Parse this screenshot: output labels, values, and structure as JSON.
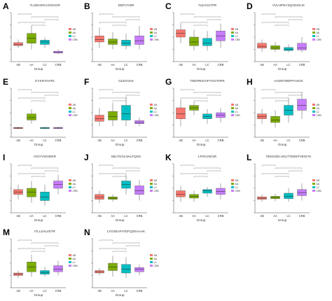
{
  "figure": {
    "group_colors": {
      "AB": "#f8766d",
      "AA": "#7cae00",
      "LC": "#00bfc4",
      "CRB": "#c77cff"
    }
  },
  "chart_data": [
    {
      "type": "box",
      "panel": "A",
      "title": "YLSDHSFLVSGGGR",
      "xlabel": "Group",
      "categories": [
        "AB",
        "AA",
        "LC",
        "CRB"
      ],
      "legend": [
        "AB",
        "AA",
        "LC",
        "CRB"
      ],
      "legend_position": "right",
      "series": [
        {
          "group": "AB",
          "q1": 0.26,
          "median": 0.28,
          "q3": 0.31,
          "min": 0.22,
          "max": 0.36
        },
        {
          "group": "AA",
          "q1": 0.3,
          "median": 0.38,
          "q3": 0.46,
          "min": 0.2,
          "max": 0.58
        },
        {
          "group": "LC",
          "q1": 0.28,
          "median": 0.32,
          "q3": 0.35,
          "min": 0.22,
          "max": 0.4
        },
        {
          "group": "CRB",
          "q1": 0.14,
          "median": 0.15,
          "q3": 0.17,
          "min": 0.12,
          "max": 0.2
        }
      ]
    },
    {
      "type": "box",
      "panel": "B",
      "title": "DDFIJYDR",
      "xlabel": "Group",
      "categories": [
        "AB",
        "AA",
        "LC",
        "CRB"
      ],
      "legend": [
        "AB",
        "AA",
        "LC",
        "CRB"
      ],
      "legend_position": "right",
      "series": [
        {
          "group": "AB",
          "q1": 0.32,
          "median": 0.36,
          "q3": 0.42,
          "min": 0.22,
          "max": 0.56
        },
        {
          "group": "AA",
          "q1": 0.28,
          "median": 0.32,
          "q3": 0.37,
          "min": 0.2,
          "max": 0.48
        },
        {
          "group": "LC",
          "q1": 0.26,
          "median": 0.3,
          "q3": 0.35,
          "min": 0.2,
          "max": 0.46
        },
        {
          "group": "CRB",
          "q1": 0.28,
          "median": 0.34,
          "q3": 0.42,
          "min": 0.2,
          "max": 0.58
        }
      ]
    },
    {
      "type": "box",
      "panel": "C",
      "title": "TLEAGLTPR",
      "xlabel": "Group",
      "categories": [
        "AB",
        "AA",
        "LC",
        "CRB"
      ],
      "legend": [
        "AB",
        "AA",
        "LC",
        "CRB"
      ],
      "legend_position": "right",
      "series": [
        {
          "group": "AB",
          "q1": 0.4,
          "median": 0.46,
          "q3": 0.52,
          "min": 0.3,
          "max": 0.62
        },
        {
          "group": "AA",
          "q1": 0.26,
          "median": 0.32,
          "q3": 0.4,
          "min": 0.18,
          "max": 0.52
        },
        {
          "group": "LC",
          "q1": 0.26,
          "median": 0.3,
          "q3": 0.38,
          "min": 0.18,
          "max": 0.5
        },
        {
          "group": "CRB",
          "q1": 0.34,
          "median": 0.42,
          "q3": 0.5,
          "min": 0.22,
          "max": 0.62
        }
      ]
    },
    {
      "type": "box",
      "panel": "D",
      "title": "VVLHPNYSQVDIGLIK",
      "xlabel": "Group",
      "categories": [
        "AB",
        "AA",
        "LC",
        "CRB"
      ],
      "legend": [
        "AB",
        "AA",
        "LC",
        "CRB"
      ],
      "legend_position": "right",
      "series": [
        {
          "group": "AB",
          "q1": 0.22,
          "median": 0.25,
          "q3": 0.3,
          "min": 0.16,
          "max": 0.36
        },
        {
          "group": "AA",
          "q1": 0.2,
          "median": 0.22,
          "q3": 0.26,
          "min": 0.16,
          "max": 0.32
        },
        {
          "group": "LC",
          "q1": 0.18,
          "median": 0.2,
          "q3": 0.23,
          "min": 0.15,
          "max": 0.28
        },
        {
          "group": "CRB",
          "q1": 0.19,
          "median": 0.22,
          "q3": 0.3,
          "min": 0.15,
          "max": 0.4
        }
      ]
    },
    {
      "type": "box",
      "panel": "E",
      "title": "GYSIFSYATK",
      "xlabel": "Group",
      "categories": [
        "AB",
        "AA",
        "LC",
        "CRB"
      ],
      "legend": [
        "AB",
        "AA",
        "LC",
        "CRB"
      ],
      "legend_position": "right",
      "series": [
        {
          "group": "AB",
          "q1": 0.14,
          "median": 0.15,
          "q3": 0.16,
          "min": 0.13,
          "max": 0.17
        },
        {
          "group": "AA",
          "q1": 0.28,
          "median": 0.32,
          "q3": 0.38,
          "min": 0.22,
          "max": 0.46
        },
        {
          "group": "LC",
          "q1": 0.14,
          "median": 0.15,
          "q3": 0.16,
          "min": 0.13,
          "max": 0.17
        },
        {
          "group": "CRB",
          "q1": 0.14,
          "median": 0.15,
          "q3": 0.16,
          "min": 0.13,
          "max": 0.17
        }
      ]
    },
    {
      "type": "box",
      "panel": "F",
      "title": "GLEGVAK",
      "xlabel": "Group",
      "categories": [
        "AB",
        "AA",
        "LC",
        "CRB"
      ],
      "legend": [
        "AB",
        "AA",
        "LC",
        "CRB"
      ],
      "legend_position": "right",
      "series": [
        {
          "group": "AB",
          "q1": 0.26,
          "median": 0.3,
          "q3": 0.36,
          "min": 0.18,
          "max": 0.48
        },
        {
          "group": "AA",
          "q1": 0.28,
          "median": 0.34,
          "q3": 0.42,
          "min": 0.18,
          "max": 0.56
        },
        {
          "group": "LC",
          "q1": 0.28,
          "median": 0.38,
          "q3": 0.52,
          "min": 0.18,
          "max": 0.66
        },
        {
          "group": "CRB",
          "q1": 0.22,
          "median": 0.24,
          "q3": 0.27,
          "min": 0.18,
          "max": 0.32
        }
      ]
    },
    {
      "type": "box",
      "panel": "G",
      "title": "TWDPEGVIFYGGTNPK",
      "xlabel": "Group",
      "categories": [
        "AB",
        "AA",
        "LC",
        "CRB"
      ],
      "legend": [
        "AB",
        "AA",
        "LC",
        "CRB"
      ],
      "legend_position": "right",
      "series": [
        {
          "group": "AB",
          "q1": 0.3,
          "median": 0.38,
          "q3": 0.48,
          "min": 0.18,
          "max": 0.62
        },
        {
          "group": "AA",
          "q1": 0.44,
          "median": 0.48,
          "q3": 0.52,
          "min": 0.36,
          "max": 0.58
        },
        {
          "group": "LC",
          "q1": 0.3,
          "median": 0.34,
          "q3": 0.38,
          "min": 0.22,
          "max": 0.46
        },
        {
          "group": "CRB",
          "q1": 0.32,
          "median": 0.36,
          "q3": 0.4,
          "min": 0.24,
          "max": 0.48
        }
      ]
    },
    {
      "type": "box",
      "panel": "H",
      "title": "AADDTWEPFASGK",
      "xlabel": "Group",
      "categories": [
        "AB",
        "AA",
        "LC",
        "CRB"
      ],
      "legend": [
        "AB",
        "AA",
        "LC",
        "CRB"
      ],
      "legend_position": "right",
      "series": [
        {
          "group": "AB",
          "q1": 0.3,
          "median": 0.34,
          "q3": 0.38,
          "min": 0.22,
          "max": 0.46
        },
        {
          "group": "AA",
          "q1": 0.24,
          "median": 0.28,
          "q3": 0.34,
          "min": 0.16,
          "max": 0.44
        },
        {
          "group": "LC",
          "q1": 0.36,
          "median": 0.44,
          "q3": 0.52,
          "min": 0.24,
          "max": 0.64
        },
        {
          "group": "CRB",
          "q1": 0.44,
          "median": 0.52,
          "q3": 0.62,
          "min": 0.3,
          "max": 0.74
        }
      ]
    },
    {
      "type": "box",
      "panel": "I",
      "title": "VGIYVSGWGR",
      "xlabel": "Group",
      "categories": [
        "AB",
        "AA",
        "LC",
        "CRB"
      ],
      "legend": [
        "AB",
        "AA",
        "LC",
        "CRB"
      ],
      "legend_position": "right",
      "series": [
        {
          "group": "AB",
          "q1": 0.3,
          "median": 0.34,
          "q3": 0.38,
          "min": 0.22,
          "max": 0.46
        },
        {
          "group": "AA",
          "q1": 0.26,
          "median": 0.34,
          "q3": 0.4,
          "min": 0.16,
          "max": 0.52
        },
        {
          "group": "LC",
          "q1": 0.2,
          "median": 0.26,
          "q3": 0.34,
          "min": 0.12,
          "max": 0.46
        },
        {
          "group": "CRB",
          "q1": 0.4,
          "median": 0.46,
          "q3": 0.52,
          "min": 0.3,
          "max": 0.62
        }
      ]
    },
    {
      "type": "box",
      "panel": "J",
      "title": "SELTGGLNALFQGK",
      "xlabel": "Group",
      "categories": [
        "AB",
        "AA",
        "LC",
        "CRB"
      ],
      "legend": [
        "AB",
        "AA",
        "LC",
        "CRB"
      ],
      "legend_position": "right",
      "series": [
        {
          "group": "AB",
          "q1": 0.22,
          "median": 0.26,
          "q3": 0.3,
          "min": 0.16,
          "max": 0.36
        },
        {
          "group": "AA",
          "q1": 0.22,
          "median": 0.24,
          "q3": 0.26,
          "min": 0.18,
          "max": 0.3
        },
        {
          "group": "LC",
          "q1": 0.4,
          "median": 0.46,
          "q3": 0.52,
          "min": 0.3,
          "max": 0.62
        },
        {
          "group": "CRB",
          "q1": 0.3,
          "median": 0.36,
          "q3": 0.44,
          "min": 0.2,
          "max": 0.54
        }
      ]
    },
    {
      "type": "box",
      "panel": "K",
      "title": "LPGIVAEGR",
      "xlabel": "Group",
      "categories": [
        "AB",
        "AA",
        "LC",
        "CRB"
      ],
      "legend": [
        "AB",
        "AA",
        "LC",
        "CRB"
      ],
      "legend_position": "right",
      "series": [
        {
          "group": "AB",
          "q1": 0.26,
          "median": 0.3,
          "q3": 0.36,
          "min": 0.18,
          "max": 0.44
        },
        {
          "group": "AA",
          "q1": 0.24,
          "median": 0.27,
          "q3": 0.3,
          "min": 0.18,
          "max": 0.36
        },
        {
          "group": "LC",
          "q1": 0.32,
          "median": 0.36,
          "q3": 0.38,
          "min": 0.26,
          "max": 0.42
        },
        {
          "group": "CRB",
          "q1": 0.3,
          "median": 0.35,
          "q3": 0.4,
          "min": 0.22,
          "max": 0.48
        }
      ]
    },
    {
      "type": "box",
      "panel": "L",
      "title": "TEESGELHGLTTEEEFVEGIYK",
      "xlabel": "Group",
      "categories": [
        "AB",
        "AA",
        "LC",
        "CRB"
      ],
      "legend": [
        "AB",
        "AA",
        "LC",
        "CRB"
      ],
      "legend_position": "right",
      "series": [
        {
          "group": "AB",
          "q1": 0.22,
          "median": 0.24,
          "q3": 0.26,
          "min": 0.18,
          "max": 0.3
        },
        {
          "group": "AA",
          "q1": 0.23,
          "median": 0.25,
          "q3": 0.27,
          "min": 0.19,
          "max": 0.31
        },
        {
          "group": "LC",
          "q1": 0.23,
          "median": 0.27,
          "q3": 0.32,
          "min": 0.18,
          "max": 0.4
        },
        {
          "group": "CRB",
          "q1": 0.28,
          "median": 0.33,
          "q3": 0.38,
          "min": 0.2,
          "max": 0.48
        }
      ]
    },
    {
      "type": "box",
      "panel": "M",
      "title": "ITLLSALVETR",
      "xlabel": "Group",
      "categories": [
        "AB",
        "AA",
        "LC",
        "CRB"
      ],
      "legend": [
        "AB",
        "AA",
        "LC",
        "CRB"
      ],
      "legend_position": "right",
      "series": [
        {
          "group": "AB",
          "q1": 0.2,
          "median": 0.22,
          "q3": 0.24,
          "min": 0.16,
          "max": 0.28
        },
        {
          "group": "AA",
          "q1": 0.26,
          "median": 0.34,
          "q3": 0.42,
          "min": 0.18,
          "max": 0.54
        },
        {
          "group": "LC",
          "q1": 0.22,
          "median": 0.25,
          "q3": 0.28,
          "min": 0.18,
          "max": 0.34
        },
        {
          "group": "CRB",
          "q1": 0.26,
          "median": 0.3,
          "q3": 0.36,
          "min": 0.2,
          "max": 0.44
        }
      ]
    },
    {
      "type": "box",
      "panel": "N",
      "title": "LYGSEAFATDFQDSAAAK",
      "xlabel": "Group",
      "categories": [
        "AB",
        "AA",
        "LC",
        "CRB"
      ],
      "legend": [
        "AB",
        "AA",
        "LC",
        "CRB"
      ],
      "legend_position": "right",
      "series": [
        {
          "group": "AB",
          "q1": 0.24,
          "median": 0.26,
          "q3": 0.28,
          "min": 0.2,
          "max": 0.32
        },
        {
          "group": "AA",
          "q1": 0.28,
          "median": 0.34,
          "q3": 0.4,
          "min": 0.18,
          "max": 0.52
        },
        {
          "group": "LC",
          "q1": 0.24,
          "median": 0.3,
          "q3": 0.38,
          "min": 0.16,
          "max": 0.5
        },
        {
          "group": "CRB",
          "q1": 0.26,
          "median": 0.3,
          "q3": 0.33,
          "min": 0.2,
          "max": 0.38
        }
      ]
    }
  ]
}
